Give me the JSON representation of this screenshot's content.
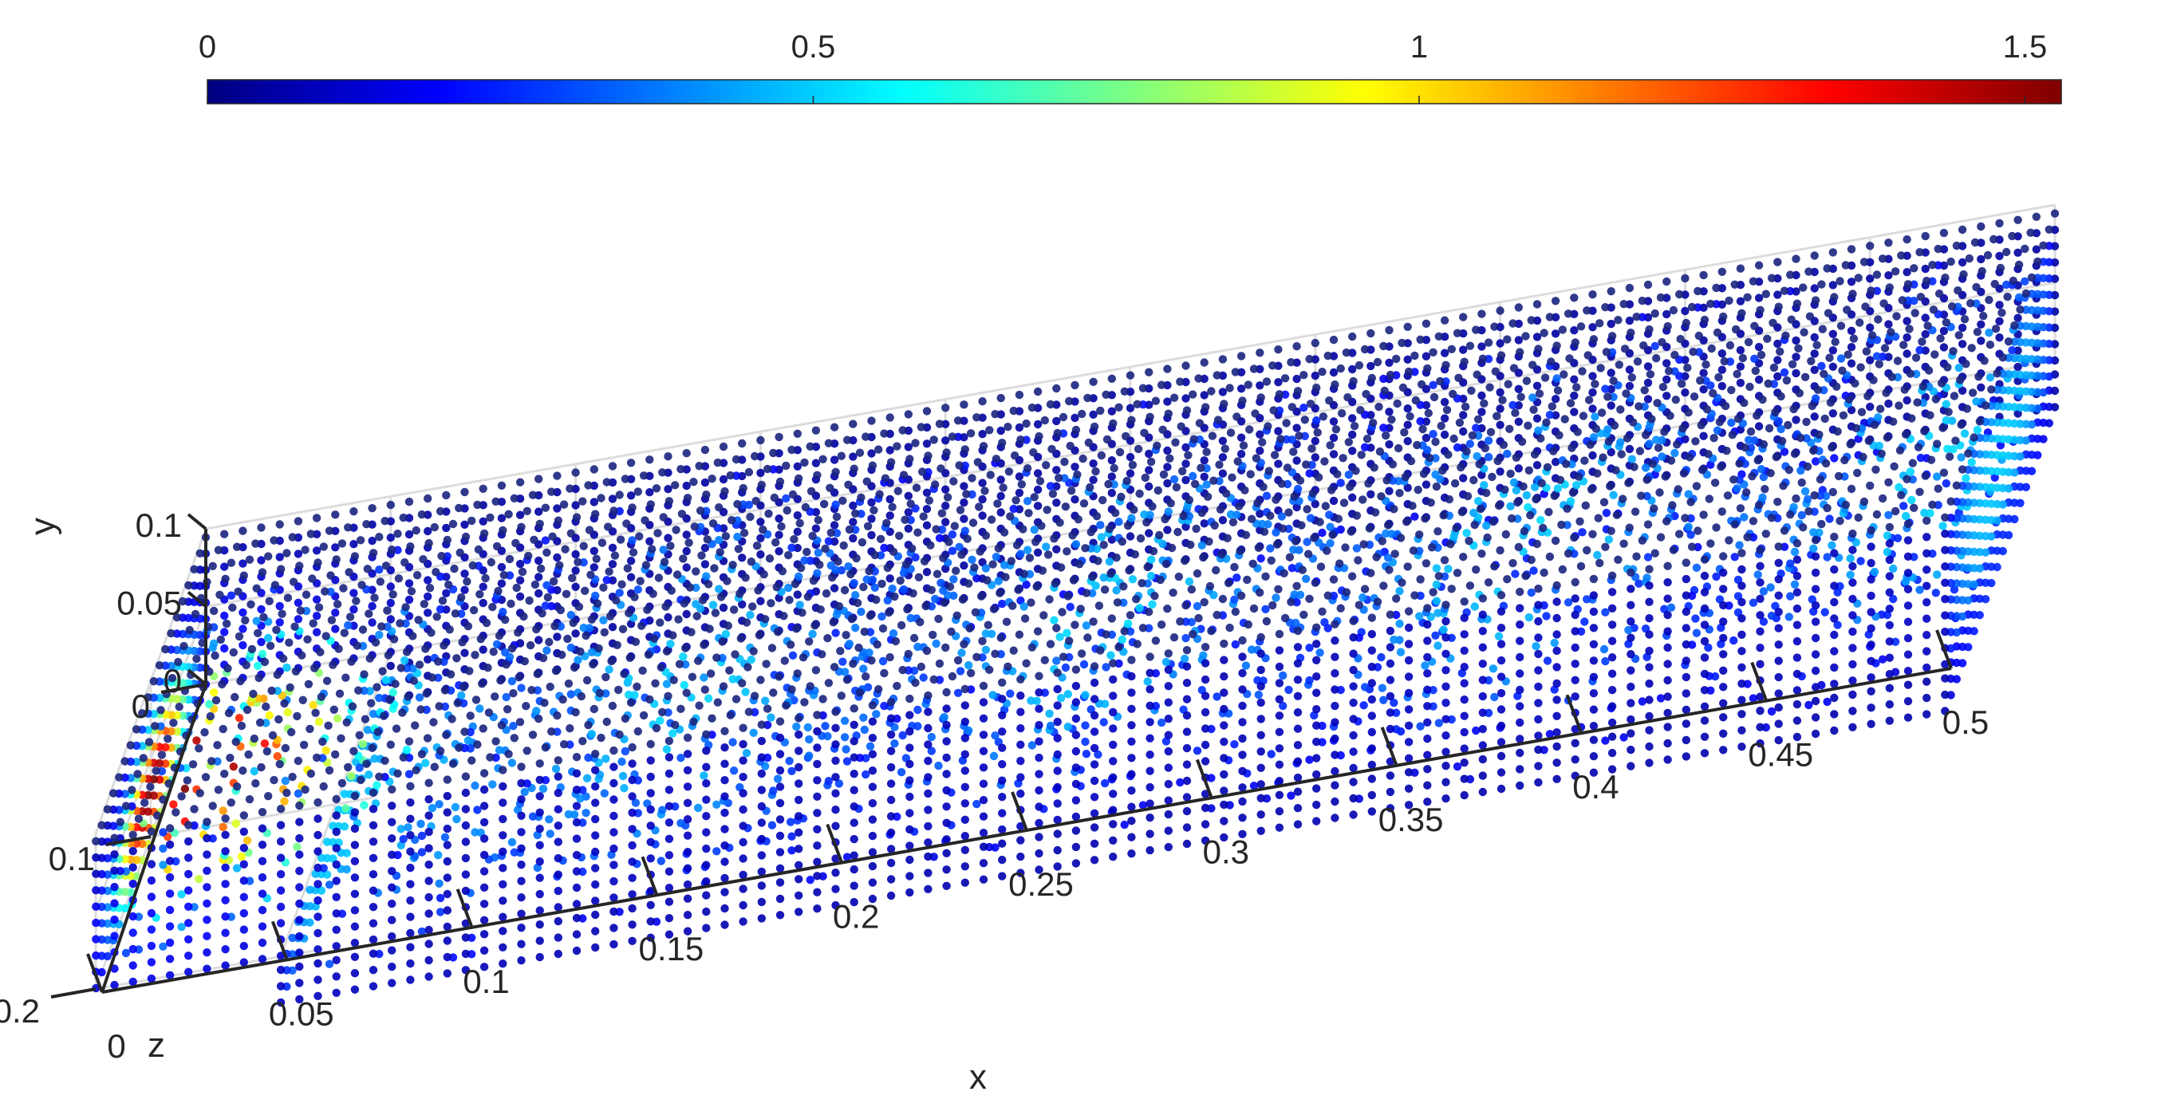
{
  "chart_data": {
    "type": "scatter",
    "plot_kind": "3d-scatter",
    "title": "",
    "xlabel": "x",
    "ylabel": "y",
    "zlabel": "z",
    "xlim": [
      0,
      0.5
    ],
    "ylim": [
      0,
      0.1
    ],
    "zlim": [
      0,
      0.2
    ],
    "x_ticks": [
      {
        "value": 0,
        "label": "0"
      },
      {
        "value": 0.05,
        "label": "0.05"
      },
      {
        "value": 0.1,
        "label": "0.1"
      },
      {
        "value": 0.15,
        "label": "0.15"
      },
      {
        "value": 0.2,
        "label": "0.2"
      },
      {
        "value": 0.25,
        "label": "0.25"
      },
      {
        "value": 0.3,
        "label": "0.3"
      },
      {
        "value": 0.35,
        "label": "0.35"
      },
      {
        "value": 0.4,
        "label": "0.4"
      },
      {
        "value": 0.45,
        "label": "0.45"
      },
      {
        "value": 0.5,
        "label": "0.5"
      }
    ],
    "y_ticks": [
      {
        "value": 0,
        "label": "0"
      },
      {
        "value": 0.05,
        "label": "0.05"
      },
      {
        "value": 0.1,
        "label": "0.1"
      }
    ],
    "z_ticks": [
      {
        "value": 0,
        "label": "0"
      },
      {
        "value": 0.1,
        "label": "0.1"
      },
      {
        "value": 0.2,
        "label": "0.2"
      }
    ],
    "colorbar": {
      "orientation": "horizontal",
      "placement": "top",
      "colormap": "jet",
      "range": [
        0,
        1.53
      ],
      "ticks": [
        {
          "value": 0,
          "label": "0"
        },
        {
          "value": 0.5,
          "label": "0.5"
        },
        {
          "value": 1,
          "label": "1"
        },
        {
          "value": 1.5,
          "label": "1.5"
        }
      ]
    },
    "grid": true,
    "point_color": "#1a237e",
    "domain": {
      "upper_block": {
        "x": [
          0,
          0.5
        ],
        "y": [
          0,
          0.1
        ],
        "z": [
          0,
          0.2
        ]
      },
      "lower_step": {
        "x": [
          0.05,
          0.5
        ],
        "y": [
          -0.03,
          0
        ],
        "z": [
          0,
          0.2
        ]
      }
    },
    "field_features": {
      "inlet_max_value": 1.5,
      "inlet_location": {
        "x": [
          0,
          0.04
        ],
        "y": [
          0,
          0.06
        ],
        "z": [
          0.04,
          0.16
        ]
      },
      "core_value": 0.4,
      "wall_value": 0.05
    }
  }
}
